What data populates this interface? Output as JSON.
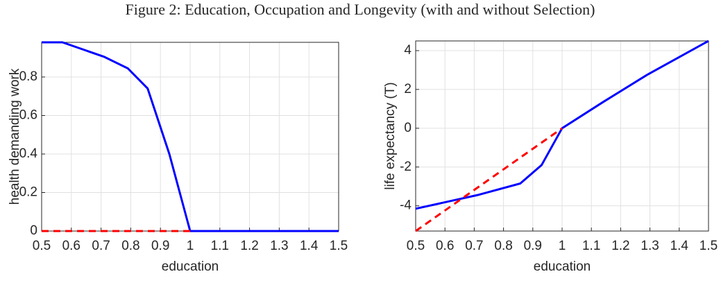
{
  "title": "Figure 2: Education, Occupation and Longevity (with and without Selection)",
  "chart_data": [
    {
      "type": "line",
      "xlabel": "education",
      "ylabel": "health demanding work",
      "xlim": [
        0.5,
        1.5
      ],
      "ylim": [
        0,
        0.98
      ],
      "xticks": [
        0.5,
        0.6,
        0.7,
        0.8,
        0.9,
        1,
        1.1,
        1.2,
        1.3,
        1.4,
        1.5
      ],
      "yticks": [
        0,
        0.2,
        0.4,
        0.6,
        0.8
      ],
      "grid": true,
      "series": [
        {
          "color": "#0000ff",
          "style": "solid",
          "x": [
            0.5,
            0.57,
            0.71,
            0.79,
            0.857,
            0.93,
            1,
            1.5
          ],
          "values": [
            0.98,
            0.98,
            0.905,
            0.845,
            0.74,
            0.4,
            0,
            0
          ]
        },
        {
          "color": "#ff0000",
          "style": "dashed",
          "x": [
            0.5,
            1
          ],
          "values": [
            0,
            0
          ]
        }
      ]
    },
    {
      "type": "line",
      "xlabel": "education",
      "ylabel": "life expectancy (T)",
      "xlim": [
        0.5,
        1.5
      ],
      "ylim": [
        -5.3,
        4.5
      ],
      "xticks": [
        0.5,
        0.6,
        0.7,
        0.8,
        0.9,
        1,
        1.1,
        1.2,
        1.3,
        1.4,
        1.5
      ],
      "yticks": [
        -4,
        -2,
        0,
        2,
        4
      ],
      "grid": true,
      "series": [
        {
          "color": "#0000ff",
          "style": "solid",
          "x": [
            0.5,
            0.71,
            0.857,
            0.93,
            1,
            1.14,
            1.29,
            1.5
          ],
          "values": [
            -4.15,
            -3.45,
            -2.85,
            -1.9,
            0,
            1.35,
            2.75,
            4.5
          ]
        },
        {
          "color": "#ff0000",
          "style": "dashed",
          "x": [
            0.5,
            1
          ],
          "values": [
            -5.3,
            0
          ]
        }
      ]
    }
  ]
}
